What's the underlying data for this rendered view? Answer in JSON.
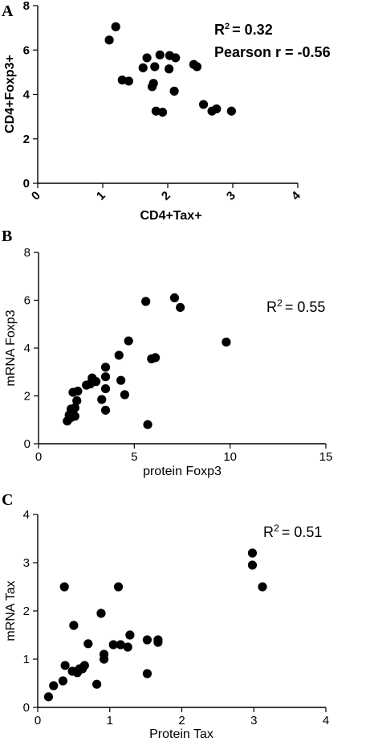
{
  "chart_data": [
    {
      "type": "scatter",
      "panel": "A",
      "xlabel": "CD4+Tax+",
      "ylabel": "CD4+Foxp3+",
      "xlim": [
        0,
        4
      ],
      "ylim": [
        0,
        8
      ],
      "xticks": [
        "0",
        "1",
        "2",
        "3",
        "4"
      ],
      "yticks": [
        "0",
        "2",
        "4",
        "6",
        "8"
      ],
      "annotation_r2_prefix": "R",
      "annotation_r2_sup": "2",
      "annotation_r2_value": "= 0.32",
      "annotation_pearson": "Pearson r = -0.56",
      "points": [
        [
          1.1,
          6.45
        ],
        [
          1.2,
          7.05
        ],
        [
          1.3,
          4.65
        ],
        [
          1.4,
          4.6
        ],
        [
          1.62,
          5.2
        ],
        [
          1.68,
          5.65
        ],
        [
          1.76,
          4.35
        ],
        [
          1.78,
          4.5
        ],
        [
          1.8,
          5.25
        ],
        [
          1.82,
          3.25
        ],
        [
          1.88,
          5.78
        ],
        [
          1.92,
          3.2
        ],
        [
          2.02,
          5.15
        ],
        [
          2.03,
          5.75
        ],
        [
          2.1,
          4.15
        ],
        [
          2.12,
          5.65
        ],
        [
          2.4,
          5.35
        ],
        [
          2.45,
          5.25
        ],
        [
          2.55,
          3.55
        ],
        [
          2.68,
          3.25
        ],
        [
          2.75,
          3.35
        ],
        [
          2.98,
          3.25
        ]
      ]
    },
    {
      "type": "scatter",
      "panel": "B",
      "xlabel": "protein Foxp3",
      "ylabel": "mRNA Foxp3",
      "xlim": [
        0,
        15
      ],
      "ylim": [
        0,
        8
      ],
      "xticks": [
        "0",
        "5",
        "10",
        "15"
      ],
      "yticks": [
        "0",
        "2",
        "4",
        "6",
        "8"
      ],
      "annotation_r2_prefix": "R",
      "annotation_r2_sup": "2",
      "annotation_r2_value": "= 0.55",
      "points": [
        [
          1.5,
          0.95
        ],
        [
          1.6,
          1.05
        ],
        [
          1.7,
          1.1
        ],
        [
          1.6,
          1.2
        ],
        [
          1.7,
          1.45
        ],
        [
          1.9,
          1.15
        ],
        [
          1.9,
          1.5
        ],
        [
          2.0,
          1.8
        ],
        [
          1.8,
          2.15
        ],
        [
          2.05,
          2.2
        ],
        [
          2.5,
          2.45
        ],
        [
          2.7,
          2.5
        ],
        [
          2.8,
          2.75
        ],
        [
          3.0,
          2.6
        ],
        [
          3.3,
          1.85
        ],
        [
          3.5,
          1.4
        ],
        [
          3.5,
          2.3
        ],
        [
          3.5,
          2.8
        ],
        [
          3.5,
          3.2
        ],
        [
          4.3,
          2.65
        ],
        [
          4.2,
          3.7
        ],
        [
          4.5,
          2.05
        ],
        [
          4.7,
          4.3
        ],
        [
          5.7,
          0.8
        ],
        [
          5.6,
          5.95
        ],
        [
          5.9,
          3.55
        ],
        [
          6.1,
          3.6
        ],
        [
          7.1,
          6.1
        ],
        [
          7.4,
          5.7
        ],
        [
          9.8,
          4.25
        ]
      ]
    },
    {
      "type": "scatter",
      "panel": "C",
      "xlabel": "Protein Tax",
      "ylabel": "mRNA Tax",
      "xlim": [
        0,
        4
      ],
      "ylim": [
        0,
        4
      ],
      "xticks": [
        "0",
        "1",
        "2",
        "3",
        "4"
      ],
      "yticks": [
        "0",
        "1",
        "2",
        "3",
        "4"
      ],
      "annotation_r2_prefix": "R",
      "annotation_r2_sup": "2",
      "annotation_r2_value": "= 0.51",
      "points": [
        [
          0.15,
          0.22
        ],
        [
          0.22,
          0.45
        ],
        [
          0.35,
          0.55
        ],
        [
          0.37,
          2.5
        ],
        [
          0.38,
          0.87
        ],
        [
          0.48,
          0.75
        ],
        [
          0.5,
          1.7
        ],
        [
          0.55,
          0.72
        ],
        [
          0.58,
          0.8
        ],
        [
          0.62,
          0.8
        ],
        [
          0.65,
          0.87
        ],
        [
          0.7,
          1.32
        ],
        [
          0.82,
          0.48
        ],
        [
          0.88,
          1.95
        ],
        [
          0.92,
          1.0
        ],
        [
          0.92,
          1.1
        ],
        [
          1.05,
          1.3
        ],
        [
          1.12,
          2.5
        ],
        [
          1.15,
          1.3
        ],
        [
          1.25,
          1.25
        ],
        [
          1.28,
          1.5
        ],
        [
          1.52,
          1.4
        ],
        [
          1.52,
          0.7
        ],
        [
          1.67,
          1.4
        ],
        [
          1.67,
          1.35
        ],
        [
          2.98,
          3.2
        ],
        [
          2.98,
          2.95
        ],
        [
          3.12,
          2.5
        ]
      ]
    }
  ]
}
